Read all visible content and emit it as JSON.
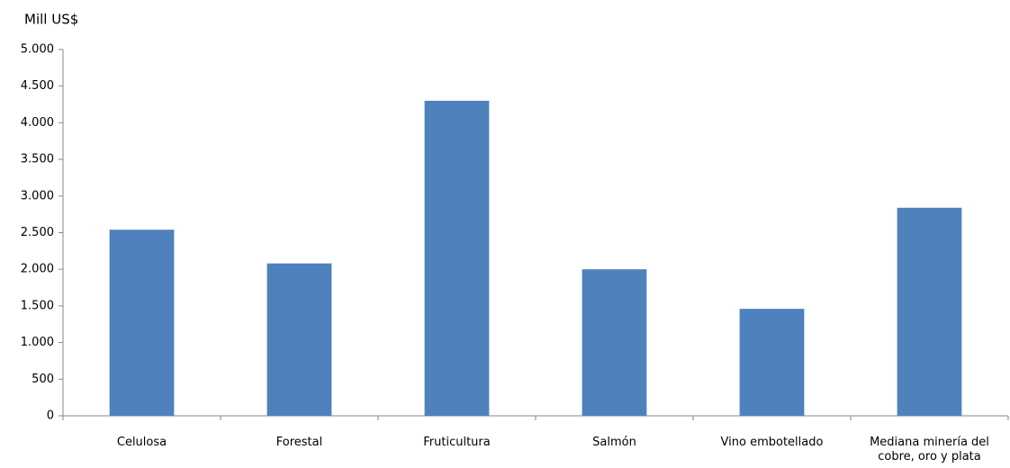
{
  "chart_data": {
    "type": "bar",
    "y_label": "Mill US$",
    "categories": [
      "Celulosa",
      "Forestal",
      "Fruticultura",
      "Salmón",
      "Vino embotellado",
      "Mediana minería del cobre, oro y plata"
    ],
    "values": [
      2540,
      2080,
      4300,
      2000,
      1460,
      2840
    ],
    "color": "#4f81bd",
    "ylim": [
      0,
      5000
    ],
    "yticks": [
      0,
      500,
      {
        "value": 1000,
        "label": "1.000"
      },
      {
        "value": 1500,
        "label": "1.500"
      },
      {
        "value": 2000,
        "label": "2.000"
      },
      {
        "value": 2500,
        "label": "2.500"
      },
      {
        "value": 3000,
        "label": "3.000"
      },
      {
        "value": 3500,
        "label": "3.500"
      },
      {
        "value": 4000,
        "label": "4.000"
      },
      {
        "value": 4500,
        "label": "4.500"
      },
      {
        "value": 5000,
        "label": "5.000"
      }
    ],
    "grid": false
  }
}
